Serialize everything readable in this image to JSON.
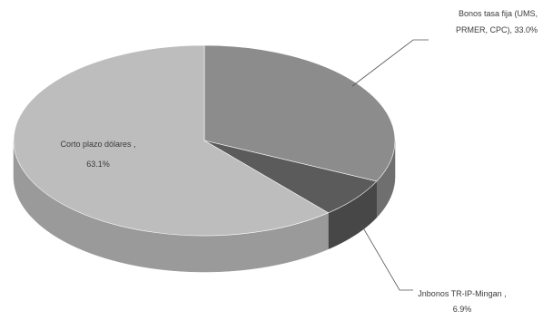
{
  "chart_data": {
    "type": "pie",
    "title": "",
    "legend": "none",
    "slices": [
      {
        "label_line1": "Bonos tasa fija (UMS,",
        "label_line2": "PRMER, CPC), 33.0%",
        "value": 33.0,
        "top_color": "#8c8c8c",
        "side_color": "#6f6f6f"
      },
      {
        "label_line1": "Jnbonos TR-IP-Mingan ,",
        "label_line2": "6.9%",
        "value": 6.9,
        "top_color": "#5b5b5b",
        "side_color": "#474747"
      },
      {
        "label_line1": "Corto plazo dólares ,",
        "label_line2": "63.1%",
        "value": 63.1,
        "top_color": "#bdbdbd",
        "side_color": "#9a9a9a"
      }
    ]
  }
}
